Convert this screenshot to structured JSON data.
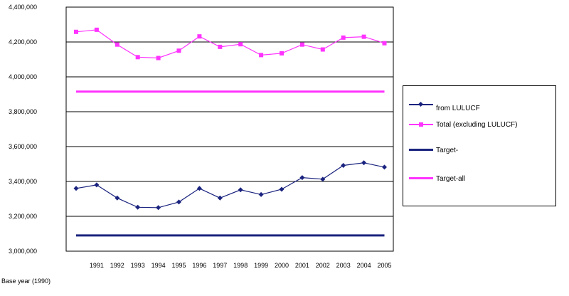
{
  "chart_data": {
    "type": "line",
    "categories": [
      "1991",
      "1992",
      "1993",
      "1994",
      "1995",
      "1996",
      "1997",
      "1998",
      "1999",
      "2000",
      "2001",
      "2002",
      "2003",
      "2004",
      "2005"
    ],
    "y_ticks": [
      "3,000,000",
      "3,200,000",
      "3,400,000",
      "3,600,000",
      "3,800,000",
      "4,000,000",
      "4,200,000",
      "4,400,000"
    ],
    "ylim": [
      3000000,
      4400000
    ],
    "grid": "horizontal",
    "legend_position": "right",
    "x_note": "Base year (1990)",
    "series": [
      {
        "name": "from LULUCF",
        "color": "#1a237e",
        "marker": "diamond",
        "x": [
          1990,
          1991,
          1992,
          1993,
          1994,
          1995,
          1996,
          1997,
          1998,
          1999,
          2000,
          2001,
          2002,
          2003,
          2004,
          2005
        ],
        "values": [
          3360000,
          3380000,
          3305000,
          3252000,
          3250000,
          3282000,
          3360000,
          3305000,
          3352000,
          3325000,
          3355000,
          3422000,
          3413000,
          3492000,
          3507000,
          3482000
        ]
      },
      {
        "name": "Total (excluding LULUCF)",
        "color": "#ff33ff",
        "marker": "square",
        "x": [
          1990,
          1991,
          1992,
          1993,
          1994,
          1995,
          1996,
          1997,
          1998,
          1999,
          2000,
          2001,
          2002,
          2003,
          2004,
          2005
        ],
        "values": [
          4258000,
          4270000,
          4185000,
          4113000,
          4108000,
          4150000,
          4232000,
          4172000,
          4187000,
          4125000,
          4135000,
          4185000,
          4157000,
          4225000,
          4230000,
          4193000
        ]
      },
      {
        "name": "Target-",
        "color": "#1a237e",
        "marker": "none",
        "style": "thick",
        "x": [
          1990,
          2005
        ],
        "values": [
          3090000,
          3090000
        ]
      },
      {
        "name": "Target-all",
        "color": "#ff33ff",
        "marker": "none",
        "style": "thick",
        "x": [
          1990,
          2005
        ],
        "values": [
          3915000,
          3915000
        ]
      }
    ]
  }
}
